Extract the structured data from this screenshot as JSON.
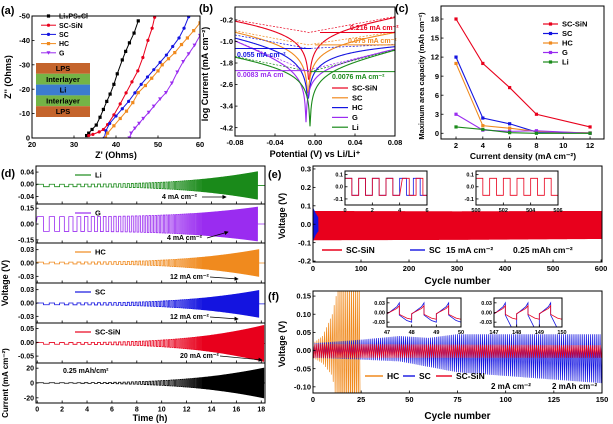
{
  "figure_labels": [
    "(a)",
    "(b)",
    "(c)",
    "(d)",
    "(e)",
    "(f)"
  ],
  "chart_data": [
    {
      "panel": "a",
      "type": "line",
      "xlabel": "Z' (Ohms)",
      "ylabel": "Z'' (Ohms)",
      "xlim": [
        20,
        60
      ],
      "ylim": [
        0,
        -50
      ],
      "xticks": [
        "20",
        "30",
        "40",
        "50",
        "60"
      ],
      "yticks": [
        "0",
        "-10",
        "-20",
        "-30",
        "-40",
        "-50"
      ],
      "legend": "top-left",
      "inset_layers": [
        {
          "label": "LPS",
          "color": "#c4642c"
        },
        {
          "label": "Interlayer",
          "color": "#74b446"
        },
        {
          "label": "Li",
          "color": "#3c7cd0"
        },
        {
          "label": "Interlayer",
          "color": "#74b446"
        },
        {
          "label": "LPS",
          "color": "#c4642c"
        }
      ],
      "series": [
        {
          "name": "Li₆PS₅Cl",
          "color": "#000000",
          "marker": "square",
          "x": [
            33,
            33.5,
            34.3,
            35.3,
            36.2,
            37,
            37.8,
            38.6,
            39.5,
            40.3,
            41.5,
            42.3,
            43.2,
            44.3,
            45.3
          ],
          "y": [
            -1,
            -2,
            -3.5,
            -5.3,
            -8.5,
            -11.7,
            -15,
            -18,
            -22,
            -26.3,
            -32,
            -35.5,
            -39,
            -43,
            -48
          ]
        },
        {
          "name": "SC-SiN",
          "color": "#e8001c",
          "marker": "circle",
          "x": [
            33.5,
            34.5,
            36,
            37,
            38,
            39.5,
            41,
            42.4,
            43.8,
            45.2,
            46.4,
            47.6,
            48.6,
            49.2
          ],
          "y": [
            -1,
            -1.5,
            -2.5,
            -3.5,
            -5.5,
            -9.5,
            -14,
            -18.5,
            -23,
            -27.5,
            -33,
            -40,
            -45,
            -49.5
          ]
        },
        {
          "name": "SC",
          "color": "#1414e0",
          "marker": "circle",
          "x": [
            37.2,
            37.6,
            38.5,
            40,
            41.5,
            43,
            44.5,
            46,
            47.5,
            49,
            50.5,
            52,
            53.5,
            55,
            56.2,
            57.3
          ],
          "y": [
            0,
            -3,
            -6,
            -9,
            -12,
            -15,
            -18.5,
            -22,
            -25,
            -28,
            -31,
            -34,
            -37.5,
            -41,
            -45,
            -49.7
          ]
        },
        {
          "name": "HC",
          "color": "#f08a1e",
          "marker": "square",
          "x": [
            37.5,
            38,
            39.5,
            41,
            42.5,
            44,
            45.3,
            47,
            48.5,
            50,
            51,
            52.5,
            54,
            55.6,
            57,
            58.5,
            60
          ],
          "y": [
            0,
            -2,
            -5,
            -8,
            -11,
            -14.5,
            -18.6,
            -21.5,
            -24.5,
            -27.5,
            -30,
            -32.5,
            -35,
            -38.3,
            -41,
            -44,
            -47.2
          ]
        },
        {
          "name": "G",
          "color": "#9a2cf0",
          "marker": "triangle-down",
          "x": [
            43.2,
            43.6,
            44.5,
            45.5,
            46.5,
            47.8,
            49,
            50.5,
            51.9,
            53.3,
            54.6,
            56,
            57.3,
            58.7,
            60
          ],
          "y": [
            0,
            -2,
            -4,
            -6,
            -8,
            -10.5,
            -13,
            -16,
            -18.6,
            -22.5,
            -27,
            -31.3,
            -34.5,
            -38,
            -42
          ]
        }
      ]
    },
    {
      "panel": "b",
      "type": "line",
      "xlabel": "Potential (V) vs Li/Li⁺",
      "ylabel": "log Current (mA cm⁻²)",
      "xlim": [
        -0.08,
        0.08
      ],
      "ylim": [
        -4.51,
        0.28
      ],
      "xticks": [
        "-0.08",
        "-0.04",
        "0.00",
        "0.04",
        "0.08"
      ],
      "yticks": [
        "-0.2",
        "-1.0",
        "-1.8",
        "-2.6",
        "-3.4",
        "-4.2"
      ],
      "legend": "bottom-right",
      "series": [
        {
          "name": "SC-SiN",
          "color": "#e8001c",
          "i_corr": 0.216,
          "E_corr": -0.006,
          "cathodic_slope": 14.6,
          "anodic_slope": 15.8,
          "min_log": -2.4,
          "label": "0.216 mA cm⁻²"
        },
        {
          "name": "SC",
          "color": "#f08a1e",
          "i_corr": 0.075,
          "E_corr": -0.007,
          "cathodic_slope": 16.4,
          "anodic_slope": 13,
          "min_log": -2.9,
          "label": "0.075 mA cm⁻²"
        },
        {
          "name": "HC",
          "color": "#1414e0",
          "i_corr": 0.055,
          "E_corr": -0.007,
          "cathodic_slope": 15.8,
          "anodic_slope": 4,
          "min_log": -3.1,
          "label": "0.055 mA cm⁻²"
        },
        {
          "name": "G",
          "color": "#9a2cf0",
          "i_corr": 0.0083,
          "E_corr": -0.009,
          "cathodic_slope": 36,
          "anodic_slope": 20.7,
          "min_log": -4.0,
          "label": "0.0083 mA cm"
        },
        {
          "name": "Li",
          "color": "#1a8a1a",
          "i_corr": 0.0076,
          "E_corr": -0.005,
          "cathodic_slope": 17.2,
          "anodic_slope": 22,
          "min_log": -4.15,
          "label": "0.0076 mA cm⁻²"
        }
      ]
    },
    {
      "panel": "c",
      "type": "line",
      "xlabel": "Current density (mA cm⁻²)",
      "ylabel": "Maximum area capacity (mAh cm⁻²)",
      "xlim": [
        0.88,
        13.04
      ],
      "ylim": [
        -0.9,
        20.05
      ],
      "xticks": [
        "2",
        "4",
        "6",
        "8",
        "10",
        "12"
      ],
      "yticks": [
        "0",
        "3",
        "6",
        "9",
        "12",
        "15",
        "18"
      ],
      "legend": "top-right",
      "x": [
        2,
        4,
        6,
        8,
        12
      ],
      "series": [
        {
          "name": "SC-SiN",
          "color": "#e8001c",
          "values": [
            18,
            11,
            7.2,
            3,
            1
          ]
        },
        {
          "name": "SC",
          "color": "#1414e0",
          "values": [
            12,
            2.4,
            1.5,
            0.2,
            0.05
          ]
        },
        {
          "name": "HC",
          "color": "#f08a1e",
          "values": [
            11,
            1.2,
            0.8,
            0.3,
            0.05
          ]
        },
        {
          "name": "G",
          "color": "#9a2cf0",
          "values": [
            3,
            0.5,
            0.3,
            0.4,
            0
          ]
        },
        {
          "name": "Li",
          "color": "#1a8a1a",
          "values": [
            1,
            0.6,
            0.1,
            0,
            0
          ]
        }
      ]
    },
    {
      "panel": "d",
      "type": "line",
      "xlabel": "Time (h)",
      "ylabel": "Voltage (V)",
      "ylabel_current": "Current (mA cm⁻²)",
      "xlim": [
        -0.1,
        18.3
      ],
      "xticks": [
        "0",
        "2",
        "4",
        "6",
        "8",
        "10",
        "12",
        "14",
        "16",
        "18"
      ],
      "series": [
        {
          "name": "Li",
          "color": "#1a8a1a",
          "ylim": [
            -0.065,
            0.06
          ],
          "yticks": [
            "0.04",
            "0.00",
            "-0.04"
          ],
          "amp_start": 0.004,
          "amp_end": 0.045,
          "offset": -0.004,
          "end_time": 17.7,
          "annotation": "4 mA cm⁻²"
        },
        {
          "name": "G",
          "color": "#9a2cf0",
          "ylim": [
            -0.18,
            0.19
          ],
          "yticks": [
            "0.15",
            "0.00",
            "-0.15"
          ],
          "amp_start": 0.07,
          "amp_end": 0.16,
          "offset": 0,
          "end_time": 17.7,
          "annotation": "4 mA cm⁻²"
        },
        {
          "name": "HC",
          "color": "#f08a1e",
          "ylim": [
            -0.045,
            0.045
          ],
          "yticks": [
            "0.03",
            "0.00",
            "-0.03"
          ],
          "amp_start": 0.002,
          "amp_end": 0.03,
          "offset": 0,
          "end_time": 17.8,
          "annotation": "12 mA cm⁻²"
        },
        {
          "name": "SC",
          "color": "#1414e0",
          "ylim": [
            -0.045,
            0.045
          ],
          "yticks": [
            "0.03",
            "0.00",
            "-0.03"
          ],
          "amp_start": 0.002,
          "amp_end": 0.03,
          "offset": -0.002,
          "end_time": 17.8,
          "annotation": "12 mA cm⁻²"
        },
        {
          "name": "SC-SiN",
          "color": "#e8001c",
          "ylim": [
            -0.075,
            0.07
          ],
          "yticks": [
            "0.05",
            "0.00",
            "-0.05"
          ],
          "amp_start": 0.003,
          "amp_end": 0.065,
          "offset": -0.004,
          "end_time": 18.2,
          "annotation": "20 mA cm⁻²"
        },
        {
          "name": "Current",
          "color": "#000000",
          "ylim": [
            -27,
            27
          ],
          "yticks": [
            "20",
            "0",
            "-20"
          ],
          "amp_start": 0.3,
          "amp_end": 20,
          "offset": 0,
          "end_time": 18.2,
          "annotation": "0.25 mAh/cm²"
        }
      ]
    },
    {
      "panel": "e",
      "type": "line",
      "xlabel": "Cycle number",
      "ylabel": "Voltage (V)",
      "xlim": [
        0,
        602
      ],
      "ylim": [
        -0.205,
        0.316
      ],
      "xticks": [
        "0",
        "100",
        "200",
        "300",
        "400",
        "500",
        "600"
      ],
      "yticks": [
        "0.3",
        "0.2",
        "0.1",
        "0.0",
        "-0.1",
        "-0.2"
      ],
      "legend": "bottom",
      "conditions": [
        "15 mA cm⁻²",
        "0.25 mAh cm⁻²"
      ],
      "series": [
        {
          "name": "SC-SiN",
          "color": "#e8001c",
          "cycles": [
            0,
            300,
            600
          ],
          "upper": [
            0.072,
            0.07,
            0.072
          ],
          "lower": [
            -0.087,
            -0.085,
            -0.08
          ]
        },
        {
          "name": "SC",
          "color": "#1414e0",
          "cycles": [
            0,
            5,
            10
          ],
          "upper": [
            0.09,
            0.06,
            0.04
          ],
          "lower": [
            -0.09,
            -0.06,
            -0.04
          ]
        }
      ],
      "insets": [
        {
          "xlim": [
            0,
            6
          ],
          "ylim": [
            -0.15,
            0.13
          ],
          "xticks": [
            "0",
            "2",
            "4",
            "6"
          ],
          "yticks": [
            "0.1",
            "0.0",
            "-0.1"
          ],
          "series": [
            "SC",
            "SC-SiN"
          ]
        },
        {
          "xlim": [
            500,
            506
          ],
          "ylim": [
            -0.15,
            0.13
          ],
          "xticks": [
            "500",
            "502",
            "504",
            "506"
          ],
          "yticks": [
            "0.1",
            "0.0",
            "-0.1"
          ],
          "series": [
            "SC-SiN"
          ]
        }
      ]
    },
    {
      "panel": "f",
      "type": "line",
      "xlabel": "Cycle number",
      "ylabel": "Voltage (V)",
      "xlim": [
        0,
        150
      ],
      "ylim": [
        -0.117,
        0.164
      ],
      "xticks": [
        "0",
        "25",
        "50",
        "75",
        "100",
        "125",
        "150"
      ],
      "yticks": [
        "0.15",
        "0.10",
        "0.05",
        "0.00",
        "-0.05",
        "-0.10"
      ],
      "legend": "bottom",
      "conditions": [
        "2 mA cm⁻²",
        "2 mAh cm⁻²"
      ],
      "series": [
        {
          "name": "HC",
          "color": "#f08a1e",
          "cycles": [
            0,
            5,
            10,
            14,
            24
          ],
          "upper": [
            0.02,
            0.04,
            0.1,
            0.2,
            0.2
          ],
          "lower": [
            -0.02,
            -0.035,
            -0.07,
            -0.2,
            -0.2
          ]
        },
        {
          "name": "SC",
          "color": "#1414e0",
          "cycles": [
            0,
            25,
            45,
            60,
            75,
            150
          ],
          "upper": [
            0.02,
            0.03,
            0.04,
            0.035,
            0.045,
            0.045
          ],
          "lower": [
            -0.02,
            -0.025,
            -0.03,
            -0.045,
            -0.06,
            -0.09
          ]
        },
        {
          "name": "SC-SiN",
          "color": "#e8001c",
          "cycles": [
            0,
            150
          ],
          "upper": [
            0.018,
            0.015
          ],
          "lower": [
            -0.02,
            -0.02
          ]
        }
      ],
      "insets": [
        {
          "xlim": [
            47,
            50
          ],
          "ylim": [
            -0.045,
            0.045
          ],
          "xticks": [
            "47",
            "48",
            "49",
            "50"
          ],
          "yticks": [
            "0.03",
            "0.00",
            "-0.03"
          ],
          "series": [
            "SC",
            "SC-SiN"
          ]
        },
        {
          "xlim": [
            147,
            150
          ],
          "ylim": [
            -0.045,
            0.045
          ],
          "xticks": [
            "147",
            "148",
            "149",
            "150"
          ],
          "yticks": [
            "0.03",
            "0.00",
            "-0.03"
          ],
          "series": [
            "SC",
            "SC-SiN"
          ]
        }
      ]
    }
  ]
}
